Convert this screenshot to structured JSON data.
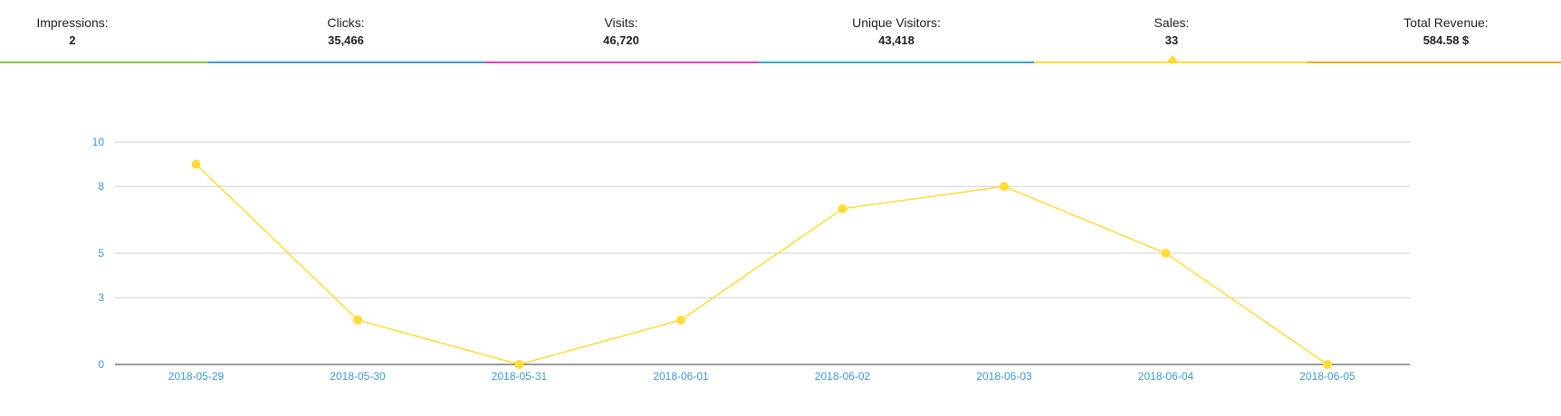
{
  "stats": [
    {
      "label": "Impressions:",
      "value": "2",
      "color": "#8cc63f",
      "active": false
    },
    {
      "label": "Clicks:",
      "value": "35,466",
      "color": "#3b9ad9",
      "active": false
    },
    {
      "label": "Visits:",
      "value": "46,720",
      "color": "#e83fb5",
      "active": false
    },
    {
      "label": "Unique Visitors:",
      "value": "43,418",
      "color": "#31a9c8",
      "active": false
    },
    {
      "label": "Sales:",
      "value": "33",
      "color": "#ffdc35",
      "active": true
    },
    {
      "label": "Total Revenue:",
      "value": "584.58 $",
      "color": "#f5a623",
      "active": false
    }
  ],
  "chart_data": {
    "type": "line",
    "x": [
      "2018-05-29",
      "2018-05-30",
      "2018-05-31",
      "2018-06-01",
      "2018-06-02",
      "2018-06-03",
      "2018-06-04",
      "2018-06-05"
    ],
    "series": [
      {
        "values": [
          9,
          2,
          0,
          2,
          7,
          8,
          5,
          0
        ],
        "color": "#ffdc35"
      }
    ],
    "yticks": [
      0,
      3,
      5,
      8,
      10
    ],
    "ylim": [
      0,
      10
    ],
    "grid": true,
    "tick_color": "#3b9ad9"
  }
}
